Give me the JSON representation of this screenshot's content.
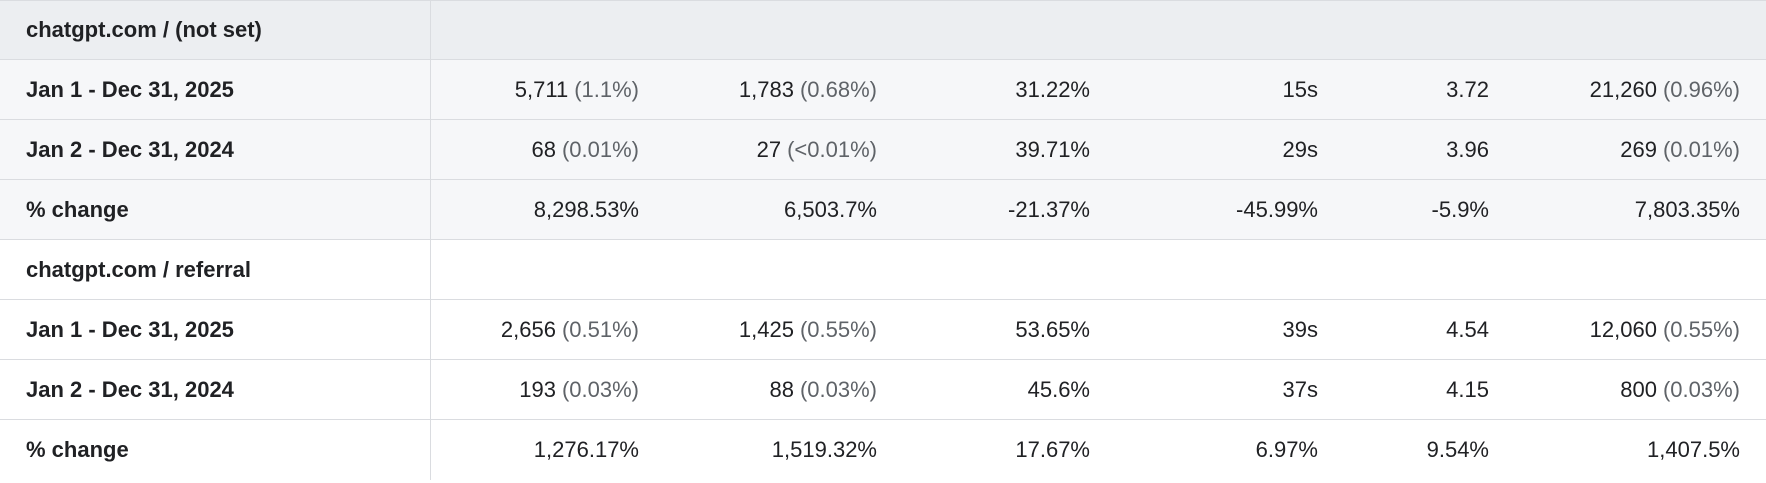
{
  "groups": [
    {
      "label": "chatgpt.com / (not set)",
      "rows": [
        {
          "label": "Jan 1 - Dec 31, 2025",
          "cells": [
            {
              "value": "5,711",
              "pct": "(1.1%)"
            },
            {
              "value": "1,783",
              "pct": "(0.68%)"
            },
            {
              "value": "31.22%",
              "pct": ""
            },
            {
              "value": "15s",
              "pct": ""
            },
            {
              "value": "3.72",
              "pct": ""
            },
            {
              "value": "21,260",
              "pct": "(0.96%)"
            }
          ]
        },
        {
          "label": "Jan 2 - Dec 31, 2024",
          "cells": [
            {
              "value": "68",
              "pct": "(0.01%)"
            },
            {
              "value": "27",
              "pct": "(<0.01%)"
            },
            {
              "value": "39.71%",
              "pct": ""
            },
            {
              "value": "29s",
              "pct": ""
            },
            {
              "value": "3.96",
              "pct": ""
            },
            {
              "value": "269",
              "pct": "(0.01%)"
            }
          ]
        },
        {
          "label": "% change",
          "cells": [
            {
              "value": "8,298.53%",
              "pct": ""
            },
            {
              "value": "6,503.7%",
              "pct": ""
            },
            {
              "value": "-21.37%",
              "pct": ""
            },
            {
              "value": "-45.99%",
              "pct": ""
            },
            {
              "value": "-5.9%",
              "pct": ""
            },
            {
              "value": "7,803.35%",
              "pct": ""
            }
          ]
        }
      ]
    },
    {
      "label": "chatgpt.com / referral",
      "rows": [
        {
          "label": "Jan 1 - Dec 31, 2025",
          "cells": [
            {
              "value": "2,656",
              "pct": "(0.51%)"
            },
            {
              "value": "1,425",
              "pct": "(0.55%)"
            },
            {
              "value": "53.65%",
              "pct": ""
            },
            {
              "value": "39s",
              "pct": ""
            },
            {
              "value": "4.54",
              "pct": ""
            },
            {
              "value": "12,060",
              "pct": "(0.55%)"
            }
          ]
        },
        {
          "label": "Jan 2 - Dec 31, 2024",
          "cells": [
            {
              "value": "193",
              "pct": "(0.03%)"
            },
            {
              "value": "88",
              "pct": "(0.03%)"
            },
            {
              "value": "45.6%",
              "pct": ""
            },
            {
              "value": "37s",
              "pct": ""
            },
            {
              "value": "4.15",
              "pct": ""
            },
            {
              "value": "800",
              "pct": "(0.03%)"
            }
          ]
        },
        {
          "label": "% change",
          "cells": [
            {
              "value": "1,276.17%",
              "pct": ""
            },
            {
              "value": "1,519.32%",
              "pct": ""
            },
            {
              "value": "17.67%",
              "pct": ""
            },
            {
              "value": "6.97%",
              "pct": ""
            },
            {
              "value": "9.54%",
              "pct": ""
            },
            {
              "value": "1,407.5%",
              "pct": ""
            }
          ]
        }
      ]
    }
  ]
}
